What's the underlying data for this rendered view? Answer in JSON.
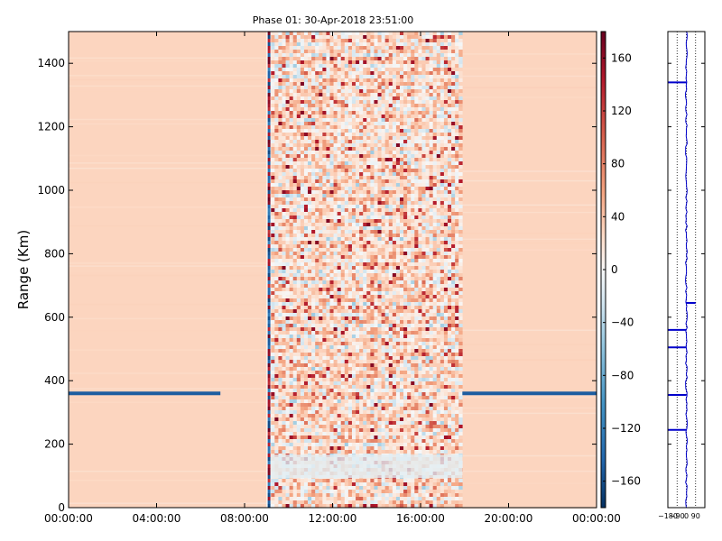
{
  "chart_data": [
    {
      "type": "heatmap",
      "title": "Phase 01: 30-Apr-2018 23:51:00",
      "xlabel": "",
      "ylabel": "Range (Km)",
      "x_ticks": [
        "00:00:00",
        "04:00:00",
        "08:00:00",
        "12:00:00",
        "16:00:00",
        "20:00:00",
        "00:00:00"
      ],
      "x_range_hours": [
        0,
        24
      ],
      "y_ticks": [
        0,
        200,
        400,
        600,
        800,
        1000,
        1200,
        1400
      ],
      "ylim": [
        0,
        1500
      ],
      "colorbar": {
        "colormap": "RdBu_r",
        "range": [
          -180,
          180
        ],
        "ticks": [
          160,
          120,
          80,
          40,
          0,
          -40,
          -80,
          -120,
          -160
        ],
        "top_color": "#67001f",
        "mid_color": "#f7f7f7",
        "bottom_color": "#053061"
      },
      "background_value": 40,
      "regions": [
        {
          "kind": "uniform",
          "from_hour": 0,
          "to_hour": 9.0,
          "value": 40
        },
        {
          "kind": "noisy",
          "from_hour": 9.2,
          "to_hour": 17.9,
          "value_range": [
            -60,
            160
          ]
        },
        {
          "kind": "uniform",
          "from_hour": 17.9,
          "to_hour": 24,
          "value": 40
        }
      ],
      "bands": [
        {
          "range_km": 360,
          "from_hour": 0,
          "to_hour": 6.9,
          "value": -150
        },
        {
          "range_km": 360,
          "from_hour": 17.9,
          "to_hour": 24,
          "value": -150
        },
        {
          "range_km": 130,
          "from_hour": 9.2,
          "to_hour": 17.9,
          "value": -20
        }
      ],
      "grid": false
    },
    {
      "type": "line",
      "x_ticks": [
        "−180",
        "−90",
        "0",
        "90"
      ],
      "xlim": [
        -180,
        180
      ],
      "ylim": [
        0,
        1500
      ],
      "grid": true,
      "series_color": "#0000cc",
      "spikes": [
        {
          "range_km": 1340,
          "value": -180
        },
        {
          "range_km": 645,
          "value": 90
        },
        {
          "range_km": 560,
          "value": -180
        },
        {
          "range_km": 505,
          "value": -180
        },
        {
          "range_km": 355,
          "value": -180
        },
        {
          "range_km": 245,
          "value": -180
        }
      ]
    }
  ]
}
